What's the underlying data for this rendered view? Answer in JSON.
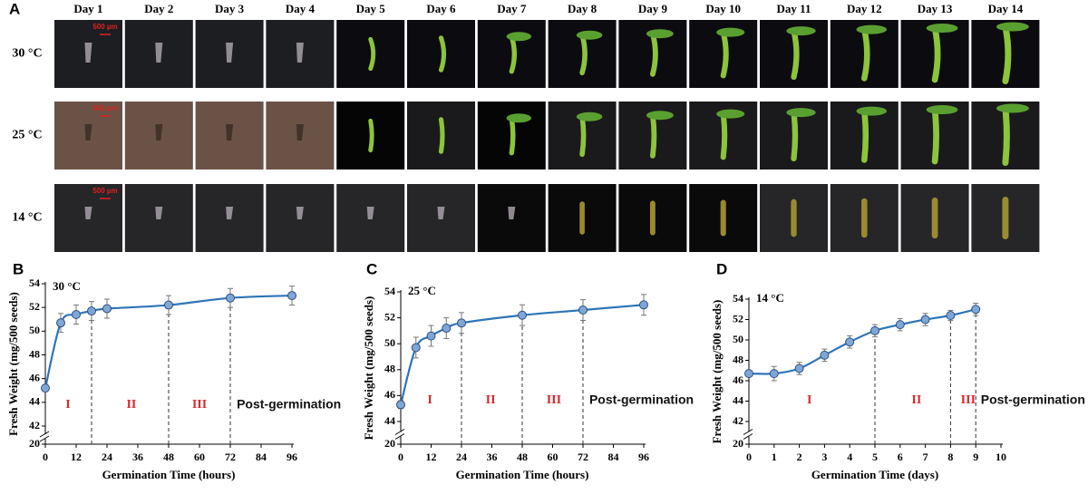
{
  "panel_a": {
    "label": "A",
    "days": [
      "Day 1",
      "Day 2",
      "Day 3",
      "Day 4",
      "Day 5",
      "Day 6",
      "Day 7",
      "Day 8",
      "Day 9",
      "Day 10",
      "Day 11",
      "Day 12",
      "Day 13",
      "Day 14"
    ],
    "rows": [
      {
        "label": "30 °C",
        "scale_bar": "500 µm"
      },
      {
        "label": "25 °C",
        "scale_bar": "500 µm"
      },
      {
        "label": "14 °C",
        "scale_bar": "500 µm"
      }
    ]
  },
  "chart_data": [
    {
      "type": "line",
      "panel": "B",
      "title": "30 °C",
      "x_label": "Germination Time (hours)",
      "y_label": "Fresh Weight (mg/500 seeds)",
      "x": [
        0,
        6,
        12,
        18,
        24,
        48,
        72,
        96
      ],
      "values": [
        45.2,
        50.7,
        51.4,
        51.7,
        51.9,
        52.2,
        52.8,
        53.0
      ],
      "errors": [
        0.3,
        0.8,
        0.8,
        0.8,
        0.8,
        0.8,
        0.8,
        0.8
      ],
      "color": "#2e75b6",
      "xlim": [
        0,
        96
      ],
      "xticks": [
        0,
        12,
        24,
        36,
        48,
        60,
        72,
        84,
        96
      ],
      "ylim": [
        20,
        54
      ],
      "ybreak": [
        20,
        42
      ],
      "yticks": [
        20,
        42,
        44,
        46,
        48,
        50,
        52,
        54
      ],
      "boundaries": [
        18,
        48,
        72
      ],
      "phases": [
        {
          "label": "I",
          "x": 8.8,
          "color": "#d9282f"
        },
        {
          "label": "II",
          "x": 33.5,
          "color": "#d9282f"
        },
        {
          "label": "III",
          "x": 60,
          "color": "#d9282f"
        },
        {
          "label": "Post-germination",
          "x": 74.5,
          "color": "#111111"
        }
      ]
    },
    {
      "type": "line",
      "panel": "C",
      "title": "25 °C",
      "x_label": "Germination Time (hours)",
      "y_label": "Fresh Weight (mg/500 seeds)",
      "x": [
        0,
        6,
        12,
        18,
        24,
        48,
        72,
        96
      ],
      "values": [
        45.3,
        49.7,
        50.6,
        51.2,
        51.6,
        52.2,
        52.6,
        53.0
      ],
      "errors": [
        0.3,
        0.8,
        0.8,
        0.8,
        0.8,
        0.8,
        0.8,
        0.8
      ],
      "color": "#2e75b6",
      "xlim": [
        0,
        96
      ],
      "xticks": [
        0,
        12,
        24,
        36,
        48,
        60,
        72,
        84,
        96
      ],
      "ylim": [
        20,
        54
      ],
      "ybreak": [
        20,
        44
      ],
      "yticks": [
        20,
        44,
        46,
        48,
        50,
        52,
        54
      ],
      "boundaries": [
        24,
        48,
        72
      ],
      "phases": [
        {
          "label": "I",
          "x": 11.5,
          "color": "#d9282f"
        },
        {
          "label": "II",
          "x": 35.5,
          "color": "#d9282f"
        },
        {
          "label": "III",
          "x": 60.5,
          "color": "#d9282f"
        },
        {
          "label": "Post-germination",
          "x": 74.5,
          "color": "#111111"
        }
      ]
    },
    {
      "type": "line",
      "panel": "D",
      "title": "14 °C",
      "x_label": "Germination Time (days)",
      "y_label": "Fresh Weight (mg/500 seeds)",
      "x": [
        0,
        1,
        2,
        3,
        4,
        5,
        6,
        7,
        8,
        9
      ],
      "values": [
        46.7,
        46.7,
        47.2,
        48.5,
        49.8,
        50.9,
        51.5,
        52.0,
        52.4,
        53.0
      ],
      "errors": [
        0.3,
        0.7,
        0.6,
        0.6,
        0.6,
        0.6,
        0.6,
        0.6,
        0.5,
        0.6
      ],
      "color": "#2e75b6",
      "xlim": [
        0,
        10
      ],
      "xticks": [
        0,
        1,
        2,
        3,
        4,
        5,
        6,
        7,
        8,
        9,
        10
      ],
      "ylim": [
        20,
        54
      ],
      "ybreak": [
        20,
        42
      ],
      "yticks": [
        20,
        42,
        44,
        46,
        48,
        50,
        52,
        54
      ],
      "boundaries": [
        5,
        8,
        9
      ],
      "phases": [
        {
          "label": "I",
          "x": 2.4,
          "color": "#d9282f"
        },
        {
          "label": "II",
          "x": 6.65,
          "color": "#d9282f"
        },
        {
          "label": "III",
          "x": 8.7,
          "color": "#d9282f"
        },
        {
          "label": "Post-germination",
          "x": 9.2,
          "color": "#111111"
        }
      ]
    }
  ]
}
